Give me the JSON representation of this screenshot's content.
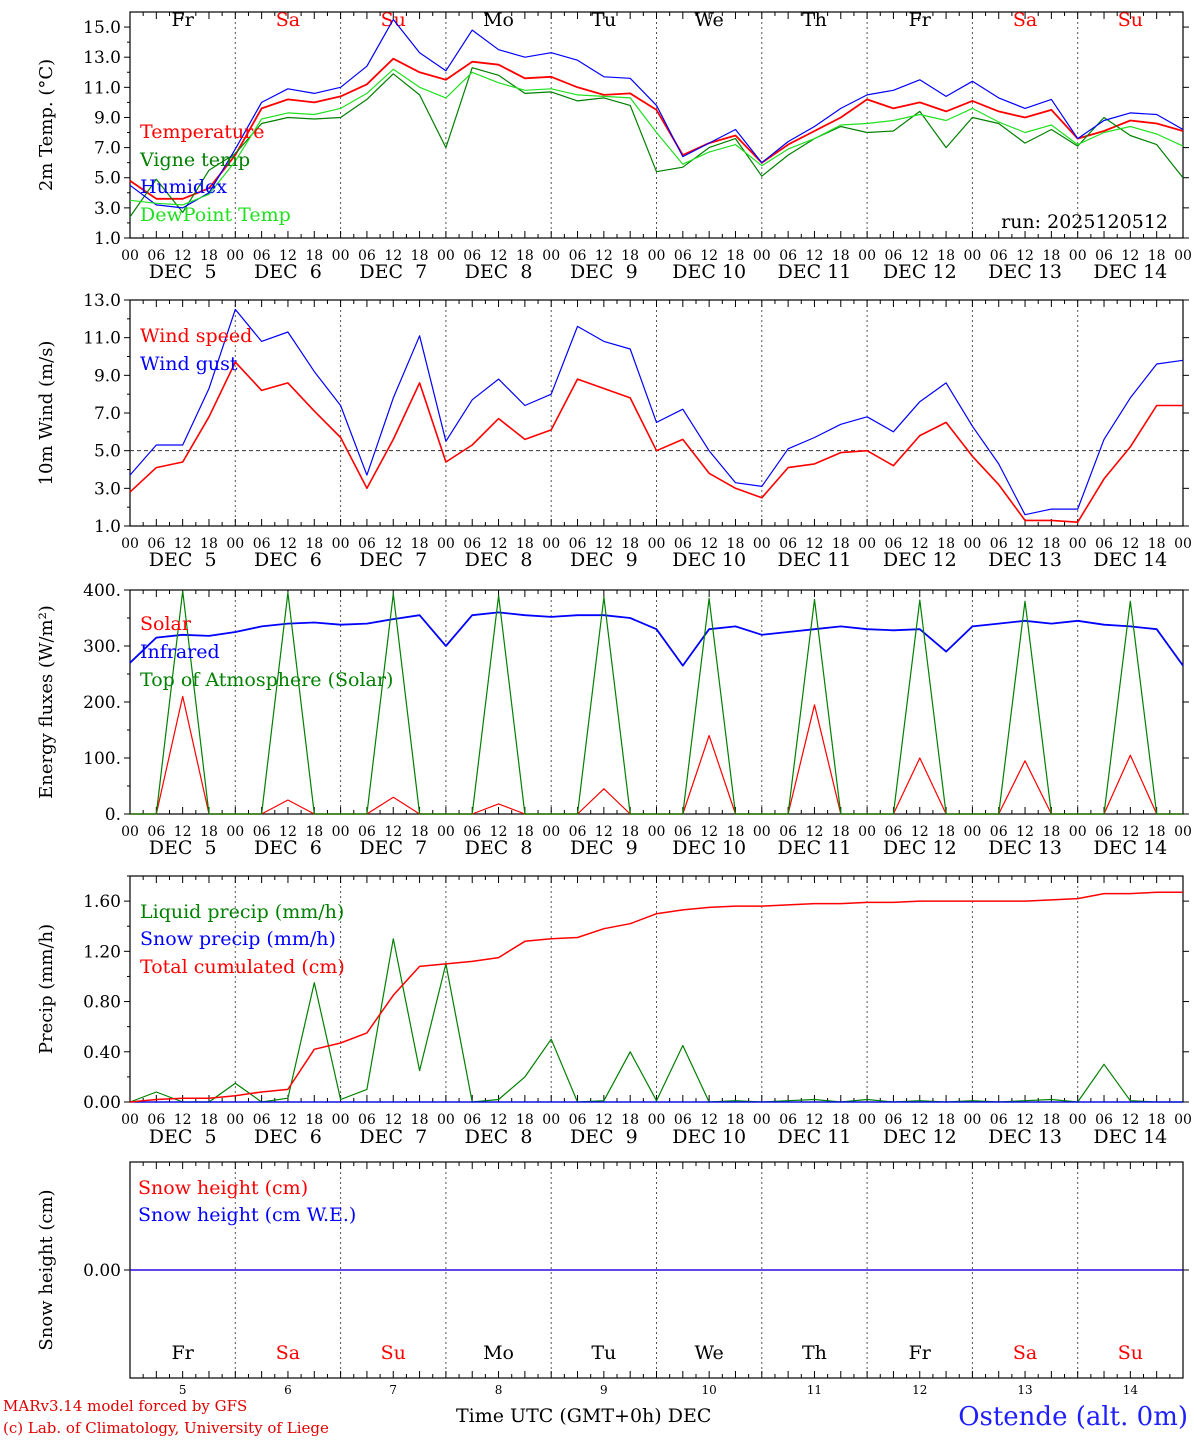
{
  "days": [
    {
      "name": "Fr",
      "date": "DEC  5",
      "num": "5",
      "weekend": false
    },
    {
      "name": "Sa",
      "date": "DEC  6",
      "num": "6",
      "weekend": true
    },
    {
      "name": "Su",
      "date": "DEC  7",
      "num": "7",
      "weekend": true
    },
    {
      "name": "Mo",
      "date": "DEC  8",
      "num": "8",
      "weekend": false
    },
    {
      "name": "Tu",
      "date": "DEC  9",
      "num": "9",
      "weekend": false
    },
    {
      "name": "We",
      "date": "DEC 10",
      "num": "10",
      "weekend": false
    },
    {
      "name": "Th",
      "date": "DEC 11",
      "num": "11",
      "weekend": false
    },
    {
      "name": "Fr",
      "date": "DEC 12",
      "num": "12",
      "weekend": false
    },
    {
      "name": "Sa",
      "date": "DEC 13",
      "num": "13",
      "weekend": true
    },
    {
      "name": "Su",
      "date": "DEC 14",
      "num": "14",
      "weekend": true
    }
  ],
  "hour_ticks": [
    "00",
    "06",
    "12",
    "18"
  ],
  "colors": {
    "red": "#ff0000",
    "green": "#008000",
    "blue": "#0000ff",
    "lightgreen": "#20e020",
    "weekend": "#ff0000",
    "axis": "#000000",
    "station": "#2020ff"
  },
  "footer": {
    "model": "MARv3.14 model forced by GFS",
    "lab": "(c) Lab. of Climatology, University of Liege",
    "axis_label": "Time UTC (GMT+0h) DEC",
    "station": "Ostende (alt. 0m)"
  },
  "chart_data": [
    {
      "id": "temp",
      "type": "line",
      "ylabel": "2m Temp. (°C)",
      "ylim": [
        1,
        16
      ],
      "yticks": [
        "1.0",
        "3.0",
        "5.0",
        "7.0",
        "9.0",
        "11.0",
        "13.0",
        "15.0"
      ],
      "annotation": "run: 2025120512",
      "x_hours": [
        0,
        6,
        12,
        18,
        24,
        30,
        36,
        42,
        48,
        54,
        60,
        66,
        72,
        78,
        84,
        90,
        96,
        102,
        108,
        114,
        120,
        126,
        132,
        138,
        144,
        150,
        156,
        162,
        168,
        174,
        180,
        186,
        192,
        198,
        204,
        210,
        216,
        222,
        228,
        234,
        240
      ],
      "series": [
        {
          "name": "Temperature",
          "color": "red",
          "values": [
            4.8,
            3.6,
            3.6,
            4.3,
            6.5,
            9.6,
            10.2,
            10.0,
            10.4,
            11.2,
            12.9,
            12.0,
            11.5,
            12.7,
            12.5,
            11.6,
            11.7,
            11.0,
            10.5,
            10.6,
            9.5,
            6.5,
            7.3,
            7.8,
            6.0,
            7.2,
            8.1,
            9.0,
            10.2,
            9.6,
            10.0,
            9.4,
            10.1,
            9.4,
            9.0,
            9.5,
            7.6,
            8.1,
            8.8,
            8.6,
            8.1
          ]
        },
        {
          "name": "Vigne temp",
          "color": "green",
          "values": [
            2.4,
            4.9,
            2.7,
            5.5,
            6.6,
            8.6,
            9.0,
            8.9,
            9.0,
            10.2,
            11.9,
            10.5,
            7.0,
            12.3,
            11.8,
            10.6,
            10.7,
            10.1,
            10.3,
            9.8,
            5.4,
            5.7,
            7.0,
            7.6,
            5.1,
            6.5,
            7.6,
            8.4,
            8.0,
            8.1,
            9.4,
            7.0,
            9.0,
            8.6,
            7.3,
            8.2,
            7.1,
            9.0,
            7.8,
            7.2,
            5.0
          ]
        },
        {
          "name": "Humidex",
          "color": "blue",
          "values": [
            4.5,
            3.2,
            3.0,
            4.0,
            6.9,
            10.0,
            10.9,
            10.6,
            11.0,
            12.4,
            15.5,
            13.3,
            12.1,
            14.8,
            13.5,
            13.0,
            13.3,
            12.8,
            11.7,
            11.6,
            9.8,
            6.4,
            7.3,
            8.2,
            6.0,
            7.4,
            8.4,
            9.6,
            10.5,
            10.8,
            11.5,
            10.4,
            11.4,
            10.3,
            9.6,
            10.2,
            7.6,
            8.8,
            9.3,
            9.2,
            8.2
          ]
        },
        {
          "name": "DewPoint Temp",
          "color": "lightgreen",
          "values": [
            3.5,
            3.3,
            3.2,
            3.9,
            6.1,
            8.9,
            9.3,
            9.2,
            9.6,
            10.6,
            12.2,
            11.0,
            10.3,
            12.0,
            11.3,
            10.8,
            10.9,
            10.5,
            10.4,
            10.3,
            8.0,
            5.9,
            6.7,
            7.2,
            5.8,
            6.9,
            7.6,
            8.5,
            8.6,
            8.8,
            9.2,
            8.8,
            9.6,
            8.7,
            8.0,
            8.5,
            7.2,
            8.0,
            8.4,
            7.9,
            7.1
          ]
        }
      ]
    },
    {
      "id": "wind",
      "type": "line",
      "ylabel": "10m Wind (m/s)",
      "ylim": [
        1,
        13
      ],
      "yticks": [
        "1.0",
        "3.0",
        "5.0",
        "7.0",
        "9.0",
        "11.0",
        "13.0"
      ],
      "ref_line": 5,
      "x_hours": [
        0,
        6,
        12,
        18,
        24,
        30,
        36,
        42,
        48,
        54,
        60,
        66,
        72,
        78,
        84,
        90,
        96,
        102,
        108,
        114,
        120,
        126,
        132,
        138,
        144,
        150,
        156,
        162,
        168,
        174,
        180,
        186,
        192,
        198,
        204,
        210,
        216,
        222,
        228,
        234,
        240
      ],
      "series": [
        {
          "name": "Wind speed",
          "color": "red",
          "values": [
            2.8,
            4.1,
            4.4,
            6.8,
            9.7,
            8.2,
            8.6,
            7.1,
            5.7,
            3.0,
            5.6,
            8.6,
            4.4,
            5.3,
            6.7,
            5.6,
            6.1,
            8.8,
            8.3,
            7.8,
            5.0,
            5.6,
            3.8,
            3.0,
            2.5,
            4.1,
            4.3,
            4.9,
            5.0,
            4.2,
            5.8,
            6.5,
            4.7,
            3.2,
            1.3,
            1.3,
            1.2,
            3.5,
            5.2,
            7.4,
            7.4
          ]
        },
        {
          "name": "Wind gust",
          "color": "blue",
          "values": [
            3.7,
            5.3,
            5.3,
            8.3,
            12.5,
            10.8,
            11.3,
            9.2,
            7.4,
            3.7,
            7.8,
            11.1,
            5.5,
            7.7,
            8.8,
            7.4,
            8.0,
            11.6,
            10.8,
            10.4,
            6.5,
            7.2,
            5.0,
            3.3,
            3.1,
            5.1,
            5.7,
            6.4,
            6.8,
            6.0,
            7.6,
            8.6,
            6.3,
            4.3,
            1.6,
            1.9,
            1.9,
            5.6,
            7.8,
            9.6,
            9.8
          ]
        }
      ]
    },
    {
      "id": "flux",
      "type": "line",
      "ylabel": "Energy fluxes (W/m²)",
      "ylim": [
        0,
        400
      ],
      "yticks": [
        "0.",
        "100.",
        "200.",
        "300.",
        "400."
      ],
      "x_hours": [
        0,
        6,
        12,
        18,
        24,
        30,
        36,
        42,
        48,
        54,
        60,
        66,
        72,
        78,
        84,
        90,
        96,
        102,
        108,
        114,
        120,
        126,
        132,
        138,
        144,
        150,
        156,
        162,
        168,
        174,
        180,
        186,
        192,
        198,
        204,
        210,
        216,
        222,
        228,
        234,
        240
      ],
      "series": [
        {
          "name": "Solar",
          "color": "red",
          "values": [
            0,
            0,
            210,
            0,
            0,
            0,
            25,
            0,
            0,
            0,
            30,
            0,
            0,
            0,
            18,
            0,
            0,
            0,
            45,
            0,
            0,
            0,
            140,
            0,
            0,
            0,
            195,
            0,
            0,
            0,
            100,
            0,
            0,
            0,
            95,
            0,
            0,
            0,
            105,
            0,
            0
          ]
        },
        {
          "name": "Infrared",
          "color": "blue",
          "values": [
            270,
            315,
            320,
            318,
            325,
            335,
            340,
            342,
            338,
            340,
            348,
            355,
            300,
            355,
            360,
            355,
            352,
            355,
            355,
            350,
            330,
            265,
            330,
            335,
            320,
            325,
            330,
            335,
            330,
            328,
            330,
            290,
            335,
            340,
            345,
            340,
            345,
            338,
            335,
            330,
            265
          ]
        },
        {
          "name": "Top of Atmosphere (Solar)",
          "color": "green",
          "values": [
            0,
            0,
            398,
            0,
            0,
            0,
            395,
            0,
            0,
            0,
            393,
            0,
            0,
            0,
            390,
            0,
            0,
            0,
            387,
            0,
            0,
            0,
            385,
            0,
            0,
            0,
            383,
            0,
            0,
            0,
            382,
            0,
            0,
            0,
            380,
            0,
            0,
            0,
            380,
            0,
            0
          ]
        }
      ]
    },
    {
      "id": "precip",
      "type": "line",
      "ylabel": "Precip (mm/h)",
      "ylim": [
        0,
        1.8
      ],
      "yticks": [
        "0.00",
        "0.40",
        "0.80",
        "1.20",
        "1.60"
      ],
      "x_hours": [
        0,
        6,
        12,
        18,
        24,
        30,
        36,
        42,
        48,
        54,
        60,
        66,
        72,
        78,
        84,
        90,
        96,
        102,
        108,
        114,
        120,
        126,
        132,
        138,
        144,
        150,
        156,
        162,
        168,
        174,
        180,
        186,
        192,
        198,
        204,
        210,
        216,
        222,
        228,
        234,
        240
      ],
      "series": [
        {
          "name": "Liquid precip (mm/h)",
          "color": "green",
          "values": [
            0,
            0.08,
            0,
            0,
            0.15,
            0,
            0.03,
            0.95,
            0.02,
            0.1,
            1.3,
            0.25,
            1.1,
            0,
            0.02,
            0.2,
            0.5,
            0,
            0.01,
            0.4,
            0.01,
            0.45,
            0,
            0.01,
            0,
            0.01,
            0.02,
            0,
            0.02,
            0,
            0.01,
            0,
            0.01,
            0,
            0.01,
            0.02,
            0,
            0.3,
            0.01,
            0,
            0
          ]
        },
        {
          "name": "Snow precip (mm/h)",
          "color": "blue",
          "values": [
            0,
            0,
            0,
            0,
            0,
            0,
            0,
            0,
            0,
            0,
            0,
            0,
            0,
            0,
            0,
            0,
            0,
            0,
            0,
            0,
            0,
            0,
            0,
            0,
            0,
            0,
            0,
            0,
            0,
            0,
            0,
            0,
            0,
            0,
            0,
            0,
            0,
            0,
            0,
            0,
            0
          ]
        },
        {
          "name": "Total cumulated (cm)",
          "color": "red",
          "values": [
            0,
            0.02,
            0.03,
            0.03,
            0.05,
            0.08,
            0.1,
            0.42,
            0.47,
            0.55,
            0.85,
            1.08,
            1.1,
            1.12,
            1.15,
            1.28,
            1.3,
            1.31,
            1.38,
            1.42,
            1.5,
            1.53,
            1.55,
            1.56,
            1.56,
            1.57,
            1.58,
            1.58,
            1.59,
            1.59,
            1.6,
            1.6,
            1.6,
            1.6,
            1.6,
            1.61,
            1.62,
            1.66,
            1.66,
            1.67,
            1.67
          ]
        }
      ]
    },
    {
      "id": "snow",
      "type": "line",
      "ylabel": "Snow height (cm)",
      "ylim": [
        -1,
        1
      ],
      "yticks": [
        "0.00"
      ],
      "x_hours": [
        0,
        240
      ],
      "series": [
        {
          "name": "Snow height (cm)",
          "color": "red",
          "values": [
            0,
            0
          ]
        },
        {
          "name": "Snow height (cm W.E.)",
          "color": "blue",
          "values": [
            0,
            0
          ]
        }
      ]
    }
  ]
}
